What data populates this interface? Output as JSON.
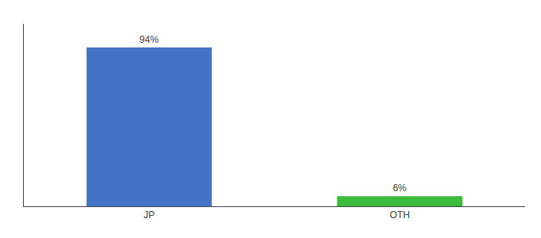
{
  "chart_data": {
    "type": "bar",
    "categories": [
      "JP",
      "OTH"
    ],
    "values": [
      94,
      6
    ],
    "value_labels": [
      "94%",
      "6%"
    ],
    "colors": [
      "#4472c4",
      "#3dbb3d"
    ],
    "ylim": [
      0,
      108
    ],
    "grid": false,
    "data_labels": true,
    "tick_labels": "x"
  }
}
